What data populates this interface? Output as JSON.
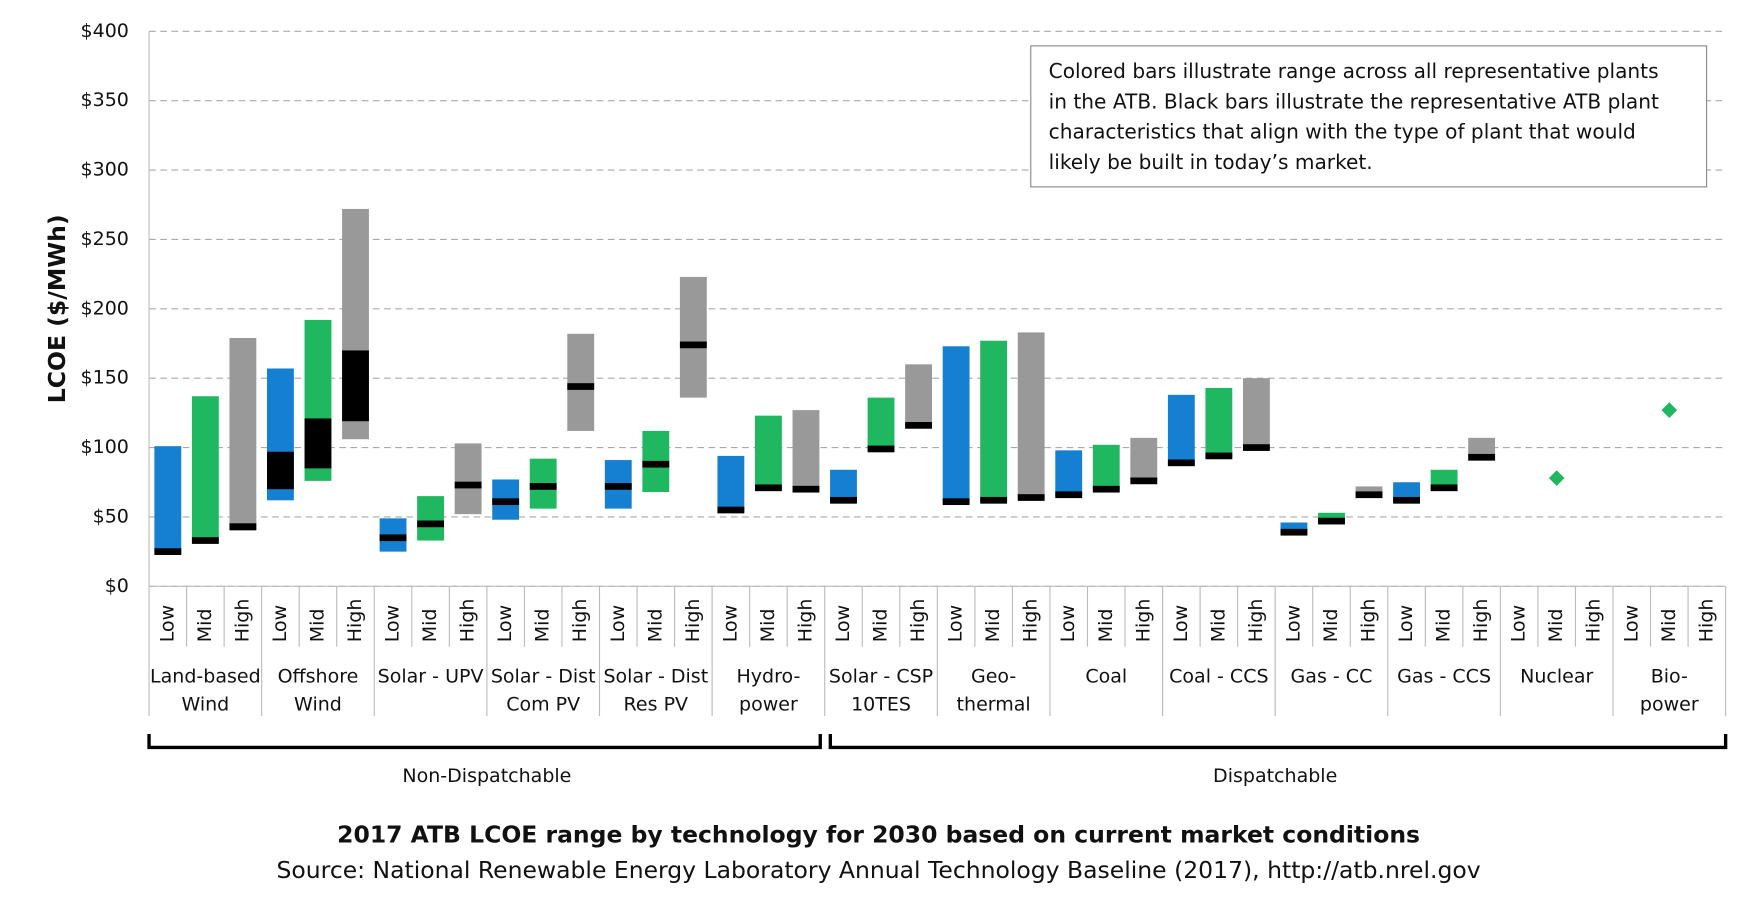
{
  "chart_data": {
    "type": "range-bar",
    "title": "2017 ATB LCOE range by technology for 2030 based on current market conditions",
    "subtitle": "Source: National Renewable Energy Laboratory Annual Technology Baseline (2017),  http://atb.nrel.gov",
    "y_label": "LCOE ($/MWh)",
    "note": [
      "Colored bars illustrate range across all representative plants",
      "in the ATB. Black bars illustrate the representative ATB plant",
      "characteristics that align with the type of plant that would",
      "likely be built in today’s market."
    ],
    "ylim": [
      0,
      400
    ],
    "yticks": [
      {
        "value": 0,
        "label": "$0"
      },
      {
        "value": 50,
        "label": "$50"
      },
      {
        "value": 100,
        "label": "$100"
      },
      {
        "value": 150,
        "label": "$150"
      },
      {
        "value": 200,
        "label": "$200"
      },
      {
        "value": 250,
        "label": "$250"
      },
      {
        "value": 300,
        "label": "$300"
      },
      {
        "value": 350,
        "label": "$350"
      },
      {
        "value": 400,
        "label": "$400"
      }
    ],
    "grid": true,
    "representative_color": "#000000",
    "groups": [
      {
        "name": "Non-Dispatchable",
        "categories": [
          [
            "Land-based",
            "Wind"
          ],
          [
            "Offshore",
            "Wind"
          ],
          [
            "Solar - UPV"
          ],
          [
            "Solar - Dist",
            "Com PV"
          ],
          [
            "Solar - Dist",
            "Res PV"
          ],
          [
            "Hydro-",
            "power"
          ]
        ]
      },
      {
        "name": "Dispatchable",
        "categories": [
          [
            "Solar - CSP",
            "10TES"
          ],
          [
            "Geo-",
            "thermal"
          ],
          [
            "Coal"
          ],
          [
            "Coal - CCS"
          ],
          [
            "Gas - CC"
          ],
          [
            "Gas - CCS"
          ],
          [
            "Nuclear"
          ],
          [
            "Bio-",
            "power"
          ]
        ]
      }
    ],
    "series": [
      {
        "name": "Low",
        "color": "#1580d2",
        "range": [
          [
            23,
            101
          ],
          [
            62,
            157
          ],
          [
            25,
            49
          ],
          [
            48,
            77
          ],
          [
            56,
            91
          ],
          [
            53,
            94
          ],
          [
            60,
            84
          ],
          [
            60,
            173
          ],
          [
            65,
            98
          ],
          [
            87,
            138
          ],
          [
            38,
            46
          ],
          [
            60,
            75
          ],
          null,
          null
        ],
        "representative": [
          25,
          [
            70,
            97
          ],
          35,
          61,
          72,
          55,
          62,
          61,
          66,
          89,
          39,
          62,
          null,
          null
        ]
      },
      {
        "name": "Mid",
        "color": "#1fb860",
        "range": [
          [
            31,
            137
          ],
          [
            76,
            192
          ],
          [
            33,
            65
          ],
          [
            56,
            92
          ],
          [
            68,
            112
          ],
          [
            70,
            123
          ],
          [
            98,
            136
          ],
          [
            61,
            177
          ],
          [
            69,
            102
          ],
          [
            93,
            143
          ],
          [
            45,
            53
          ],
          [
            69,
            84
          ],
          null,
          null
        ],
        "representative": [
          33,
          [
            85,
            121
          ],
          45,
          72,
          88,
          71,
          99,
          62,
          70,
          94,
          47,
          71,
          null,
          null
        ],
        "point": [
          null,
          null,
          null,
          null,
          null,
          null,
          null,
          null,
          null,
          null,
          null,
          null,
          78,
          127
        ]
      },
      {
        "name": "High",
        "color": "#999999",
        "range": [
          [
            40,
            179
          ],
          [
            106,
            272
          ],
          [
            52,
            103
          ],
          [
            112,
            182
          ],
          [
            136,
            223
          ],
          [
            69,
            127
          ],
          [
            114,
            160
          ],
          [
            63,
            183
          ],
          [
            75,
            107
          ],
          [
            98,
            150
          ],
          [
            65,
            72
          ],
          [
            92,
            107
          ],
          null,
          null
        ],
        "representative": [
          43,
          [
            119,
            170
          ],
          73,
          144,
          174,
          70,
          116,
          64,
          76,
          100,
          66,
          93,
          null,
          null
        ]
      }
    ]
  }
}
